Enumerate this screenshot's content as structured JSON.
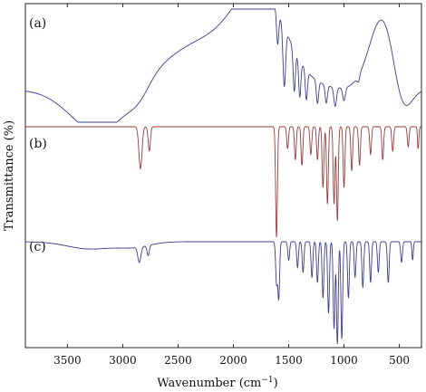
{
  "chart_data": {
    "type": "line",
    "xlabel_main": "Wavenumber",
    "xlabel_unit": "(cm",
    "xlabel_sup": "−1",
    "xlabel_close": ")",
    "ylabel": "Transmittance (%)",
    "xlim": [
      3880,
      300
    ],
    "x_reversed": true,
    "x_ticks": [
      3500,
      3000,
      2500,
      2000,
      1500,
      1000,
      500
    ],
    "tick_labels": [
      "3500",
      "3000",
      "2500",
      "2000",
      "1500",
      "1000",
      "500"
    ],
    "grid": false,
    "series": [
      {
        "label": "(a)",
        "color": "#3b3f8c",
        "baseline": 0.7,
        "wavy": 0.0,
        "broad_bands": [
          {
            "x": 3200,
            "depth": 0.78,
            "width": 260
          },
          {
            "x": 2850,
            "depth": 0.18,
            "width": 90
          },
          {
            "x": 2400,
            "depth": -0.08,
            "width": 500
          },
          {
            "x": 480,
            "depth": 0.6,
            "width": 80
          }
        ],
        "peaks": [
          {
            "x": 1540,
            "depth": 1.0,
            "width": 12
          },
          {
            "x": 1600,
            "depth": 0.55,
            "width": 10
          },
          {
            "x": 1450,
            "depth": 0.7,
            "width": 10
          },
          {
            "x": 1400,
            "depth": 0.62,
            "width": 10
          },
          {
            "x": 1340,
            "depth": 0.5,
            "width": 10
          },
          {
            "x": 1240,
            "depth": 0.38,
            "width": 10
          },
          {
            "x": 1160,
            "depth": 0.3,
            "width": 10
          },
          {
            "x": 1080,
            "depth": 0.32,
            "width": 12
          },
          {
            "x": 1000,
            "depth": 0.22,
            "width": 12
          },
          {
            "x": 870,
            "depth": 0.1,
            "width": 12
          }
        ]
      },
      {
        "label": "(b)",
        "color": "#9a3b3b",
        "baseline": 0.0,
        "wavy": 0.0,
        "broad_bands": [],
        "peaks": [
          {
            "x": 2840,
            "depth": 0.38,
            "width": 14
          },
          {
            "x": 2760,
            "depth": 0.22,
            "width": 10
          },
          {
            "x": 1610,
            "depth": 1.0,
            "width": 8
          },
          {
            "x": 1510,
            "depth": 0.2,
            "width": 8
          },
          {
            "x": 1440,
            "depth": 0.3,
            "width": 8
          },
          {
            "x": 1380,
            "depth": 0.35,
            "width": 8
          },
          {
            "x": 1300,
            "depth": 0.25,
            "width": 8
          },
          {
            "x": 1240,
            "depth": 0.3,
            "width": 8
          },
          {
            "x": 1190,
            "depth": 0.55,
            "width": 8
          },
          {
            "x": 1150,
            "depth": 0.7,
            "width": 8
          },
          {
            "x": 1090,
            "depth": 0.7,
            "width": 8
          },
          {
            "x": 1060,
            "depth": 0.85,
            "width": 8
          },
          {
            "x": 1000,
            "depth": 0.55,
            "width": 8
          },
          {
            "x": 930,
            "depth": 0.4,
            "width": 8
          },
          {
            "x": 860,
            "depth": 0.35,
            "width": 8
          },
          {
            "x": 760,
            "depth": 0.25,
            "width": 8
          },
          {
            "x": 650,
            "depth": 0.3,
            "width": 8
          },
          {
            "x": 560,
            "depth": 0.22,
            "width": 8
          },
          {
            "x": 420,
            "depth": 0.18,
            "width": 8
          },
          {
            "x": 330,
            "depth": 0.2,
            "width": 6
          }
        ]
      },
      {
        "label": "(c)",
        "color": "#3b3f8c",
        "baseline": 0.0,
        "wavy": 0.0,
        "broad_bands": [
          {
            "x": 3300,
            "depth": 0.07,
            "width": 200
          },
          {
            "x": 2900,
            "depth": 0.05,
            "width": 150
          }
        ],
        "peaks": [
          {
            "x": 2850,
            "depth": 0.15,
            "width": 14
          },
          {
            "x": 2770,
            "depth": 0.1,
            "width": 10
          },
          {
            "x": 1610,
            "depth": 0.4,
            "width": 8
          },
          {
            "x": 1590,
            "depth": 0.55,
            "width": 8
          },
          {
            "x": 1500,
            "depth": 0.18,
            "width": 8
          },
          {
            "x": 1420,
            "depth": 0.25,
            "width": 8
          },
          {
            "x": 1370,
            "depth": 0.3,
            "width": 8
          },
          {
            "x": 1290,
            "depth": 0.35,
            "width": 8
          },
          {
            "x": 1240,
            "depth": 0.4,
            "width": 8
          },
          {
            "x": 1190,
            "depth": 0.55,
            "width": 8
          },
          {
            "x": 1140,
            "depth": 0.7,
            "width": 8
          },
          {
            "x": 1090,
            "depth": 0.85,
            "width": 8
          },
          {
            "x": 1060,
            "depth": 1.0,
            "width": 8
          },
          {
            "x": 1020,
            "depth": 0.95,
            "width": 8
          },
          {
            "x": 960,
            "depth": 0.55,
            "width": 8
          },
          {
            "x": 900,
            "depth": 0.35,
            "width": 8
          },
          {
            "x": 830,
            "depth": 0.45,
            "width": 8
          },
          {
            "x": 760,
            "depth": 0.4,
            "width": 8
          },
          {
            "x": 690,
            "depth": 0.3,
            "width": 8
          },
          {
            "x": 600,
            "depth": 0.4,
            "width": 8
          },
          {
            "x": 480,
            "depth": 0.2,
            "width": 8
          },
          {
            "x": 380,
            "depth": 0.18,
            "width": 6
          }
        ]
      }
    ]
  }
}
